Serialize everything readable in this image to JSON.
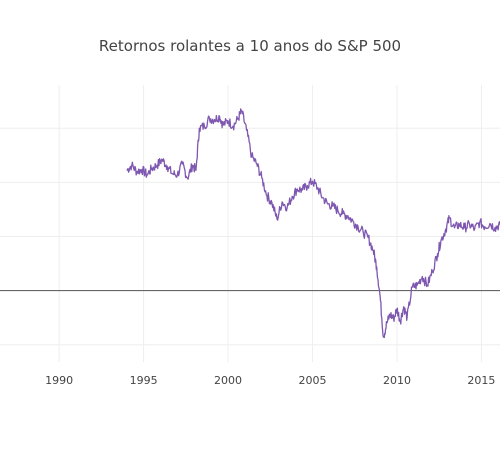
{
  "chart_data": {
    "type": "line",
    "title": "Retornos rolantes a 10 anos do S&P 500",
    "xlabel": "",
    "ylabel": "",
    "xlim": [
      1986.5,
      2016.1
    ],
    "ylim": [
      -0.066,
      0.19
    ],
    "x_ticks": [
      1990,
      1995,
      2000,
      2005,
      2010,
      2015
    ],
    "x_tick_labels": [
      "1990",
      "1995",
      "2000",
      "2005",
      "2010",
      "2015"
    ],
    "y_gridlines": [
      -0.05,
      0.0,
      0.05,
      0.1,
      0.15
    ],
    "grid": true,
    "zero_line": true,
    "legend": "none",
    "colors": {
      "series": "#7e57b0",
      "zero_line": "#666666",
      "grid": "#eeeeee"
    },
    "series": [
      {
        "values": [
          [
            1994.0,
            0.111
          ],
          [
            1994.3,
            0.116
          ],
          [
            1994.6,
            0.11
          ],
          [
            1994.9,
            0.112
          ],
          [
            1995.2,
            0.107
          ],
          [
            1995.5,
            0.113
          ],
          [
            1995.8,
            0.116
          ],
          [
            1996.1,
            0.121
          ],
          [
            1996.4,
            0.115
          ],
          [
            1996.7,
            0.108
          ],
          [
            1997.0,
            0.107
          ],
          [
            1997.3,
            0.117
          ],
          [
            1997.6,
            0.104
          ],
          [
            1997.9,
            0.116
          ],
          [
            1998.1,
            0.111
          ],
          [
            1998.3,
            0.15
          ],
          [
            1998.6,
            0.152
          ],
          [
            1998.9,
            0.159
          ],
          [
            1999.2,
            0.158
          ],
          [
            1999.5,
            0.161
          ],
          [
            1999.7,
            0.153
          ],
          [
            2000.0,
            0.157
          ],
          [
            2000.3,
            0.152
          ],
          [
            2000.6,
            0.159
          ],
          [
            2000.8,
            0.166
          ],
          [
            2001.1,
            0.148
          ],
          [
            2001.4,
            0.124
          ],
          [
            2001.7,
            0.117
          ],
          [
            2002.0,
            0.104
          ],
          [
            2002.3,
            0.088
          ],
          [
            2002.6,
            0.081
          ],
          [
            2002.9,
            0.066
          ],
          [
            2003.2,
            0.082
          ],
          [
            2003.5,
            0.077
          ],
          [
            2003.8,
            0.087
          ],
          [
            2004.1,
            0.094
          ],
          [
            2004.4,
            0.093
          ],
          [
            2004.7,
            0.097
          ],
          [
            2005.0,
            0.101
          ],
          [
            2005.3,
            0.095
          ],
          [
            2005.6,
            0.086
          ],
          [
            2005.9,
            0.08
          ],
          [
            2006.2,
            0.078
          ],
          [
            2006.5,
            0.074
          ],
          [
            2006.8,
            0.071
          ],
          [
            2007.1,
            0.069
          ],
          [
            2007.4,
            0.064
          ],
          [
            2007.7,
            0.059
          ],
          [
            2008.0,
            0.054
          ],
          [
            2008.3,
            0.049
          ],
          [
            2008.6,
            0.037
          ],
          [
            2008.8,
            0.022
          ],
          [
            2009.0,
            -0.005
          ],
          [
            2009.2,
            -0.043
          ],
          [
            2009.4,
            -0.03
          ],
          [
            2009.6,
            -0.022
          ],
          [
            2009.8,
            -0.026
          ],
          [
            2010.0,
            -0.017
          ],
          [
            2010.2,
            -0.028
          ],
          [
            2010.4,
            -0.015
          ],
          [
            2010.6,
            -0.025
          ],
          [
            2010.9,
            0.003
          ],
          [
            2011.2,
            0.005
          ],
          [
            2011.5,
            0.013
          ],
          [
            2011.8,
            0.005
          ],
          [
            2012.1,
            0.018
          ],
          [
            2012.4,
            0.034
          ],
          [
            2012.6,
            0.046
          ],
          [
            2012.9,
            0.057
          ],
          [
            2013.1,
            0.067
          ],
          [
            2013.4,
            0.058
          ],
          [
            2013.7,
            0.061
          ],
          [
            2014.0,
            0.058
          ],
          [
            2014.3,
            0.061
          ],
          [
            2014.6,
            0.057
          ],
          [
            2014.9,
            0.063
          ],
          [
            2015.2,
            0.059
          ],
          [
            2015.5,
            0.062
          ],
          [
            2015.8,
            0.058
          ],
          [
            2016.1,
            0.061
          ]
        ]
      }
    ]
  }
}
